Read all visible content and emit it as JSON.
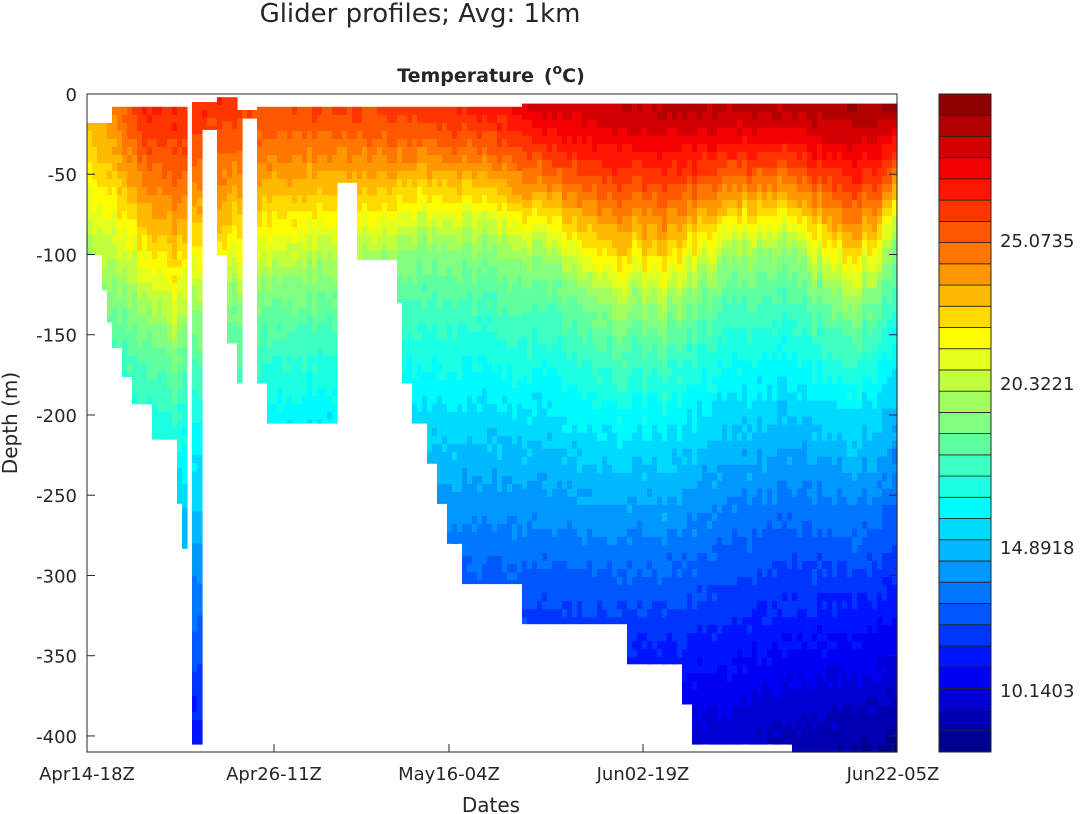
{
  "chart_data": {
    "type": "heatmap",
    "suptitle": "Glider profiles; Avg: 1km",
    "title": "Temperature",
    "title_units": "(oC)",
    "title_units_base": "(",
    "title_units_sup": "o",
    "title_units_rest": "C)",
    "xlabel": "Dates",
    "ylabel": "Depth  (m)",
    "xlim": [
      0,
      810
    ],
    "ylim": [
      -410,
      0
    ],
    "xticks": [
      {
        "value": 0,
        "label": "Apr14-18Z"
      },
      {
        "value": 187,
        "label": "Apr26-11Z"
      },
      {
        "value": 362,
        "label": "May16-04Z"
      },
      {
        "value": 556,
        "label": "Jun02-19Z"
      },
      {
        "value": 806,
        "label": "Jun22-05Z"
      }
    ],
    "yticks": [
      0,
      -50,
      -100,
      -150,
      -200,
      -250,
      -300,
      -350,
      -400
    ],
    "colorbar": {
      "colormap": "jet",
      "levels": 31,
      "clim": [
        8.08,
        29.92
      ],
      "ticks": [
        {
          "value": 25.0735,
          "label": "25.0735"
        },
        {
          "value": 20.3221,
          "label": "20.3221"
        },
        {
          "value": 14.8918,
          "label": "14.8918"
        },
        {
          "value": 10.1403,
          "label": "10.1403"
        }
      ]
    },
    "profile_max_depth_segments": [
      {
        "x0": 0,
        "x1": 13,
        "top": -18,
        "max_depth": -100
      },
      {
        "x0": 13,
        "x1": 18,
        "top": -18,
        "max_depth": -122
      },
      {
        "x0": 18,
        "x1": 26,
        "top": -18,
        "max_depth": -142
      },
      {
        "x0": 26,
        "x1": 35,
        "top": -8,
        "max_depth": -158
      },
      {
        "x0": 35,
        "x1": 44,
        "top": -8,
        "max_depth": -176
      },
      {
        "x0": 44,
        "x1": 66,
        "top": -8,
        "max_depth": -193
      },
      {
        "x0": 66,
        "x1": 91,
        "top": -8,
        "max_depth": -215
      },
      {
        "x0": 91,
        "x1": 94,
        "top": -8,
        "max_depth": -255
      },
      {
        "x0": 94,
        "x1": 101,
        "top": -8,
        "max_depth": -283
      },
      {
        "x0": 105,
        "x1": 115,
        "top": -5,
        "max_depth": -405
      },
      {
        "x0": 115,
        "x1": 132,
        "top": -5,
        "max_depth": -22
      },
      {
        "x0": 132,
        "x1": 138,
        "top": -2,
        "max_depth": -100
      },
      {
        "x0": 138,
        "x1": 150,
        "top": -2,
        "max_depth": -155
      },
      {
        "x0": 150,
        "x1": 153,
        "top": -10,
        "max_depth": -180
      },
      {
        "x0": 153,
        "x1": 171,
        "top": -10,
        "max_depth": -15
      },
      {
        "x0": 171,
        "x1": 178,
        "top": -8,
        "max_depth": -180
      },
      {
        "x0": 178,
        "x1": 250,
        "top": -8,
        "max_depth": -205
      },
      {
        "x0": 250,
        "x1": 270,
        "top": -8,
        "max_depth": -55
      },
      {
        "x0": 270,
        "x1": 308,
        "top": -8,
        "max_depth": -103
      },
      {
        "x0": 308,
        "x1": 317,
        "top": -8,
        "max_depth": -130
      },
      {
        "x0": 317,
        "x1": 323,
        "top": -8,
        "max_depth": -180
      },
      {
        "x0": 323,
        "x1": 339,
        "top": -8,
        "max_depth": -205
      },
      {
        "x0": 339,
        "x1": 350,
        "top": -8,
        "max_depth": -230
      },
      {
        "x0": 350,
        "x1": 360,
        "top": -8,
        "max_depth": -255
      },
      {
        "x0": 360,
        "x1": 375,
        "top": -8,
        "max_depth": -280
      },
      {
        "x0": 375,
        "x1": 437,
        "top": -8,
        "max_depth": -305
      },
      {
        "x0": 437,
        "x1": 538,
        "top": -6,
        "max_depth": -330
      },
      {
        "x0": 538,
        "x1": 593,
        "top": -6,
        "max_depth": -355
      },
      {
        "x0": 593,
        "x1": 597,
        "top": -6,
        "max_depth": -300
      },
      {
        "x0": 597,
        "x1": 606,
        "top": -6,
        "max_depth": -380
      },
      {
        "x0": 606,
        "x1": 703,
        "top": -6,
        "max_depth": -405
      },
      {
        "x0": 703,
        "x1": 810,
        "top": -6,
        "max_depth": -410
      }
    ],
    "surface_temp": [
      {
        "x": 0,
        "t": 23.5
      },
      {
        "x": 25,
        "t": 24.5
      },
      {
        "x": 60,
        "t": 26.8
      },
      {
        "x": 110,
        "t": 26.6
      },
      {
        "x": 180,
        "t": 25.8
      },
      {
        "x": 300,
        "t": 26.2
      },
      {
        "x": 420,
        "t": 27.3
      },
      {
        "x": 450,
        "t": 28.3
      },
      {
        "x": 560,
        "t": 28.8
      },
      {
        "x": 700,
        "t": 29.2
      },
      {
        "x": 810,
        "t": 29.5
      }
    ],
    "isotherm_20C_depth": [
      {
        "x": 0,
        "d": 95
      },
      {
        "x": 40,
        "d": 115
      },
      {
        "x": 85,
        "d": 150
      },
      {
        "x": 110,
        "d": 130
      },
      {
        "x": 180,
        "d": 110
      },
      {
        "x": 260,
        "d": 100
      },
      {
        "x": 360,
        "d": 85
      },
      {
        "x": 450,
        "d": 95
      },
      {
        "x": 530,
        "d": 125
      },
      {
        "x": 580,
        "d": 130
      },
      {
        "x": 640,
        "d": 100
      },
      {
        "x": 700,
        "d": 90
      },
      {
        "x": 760,
        "d": 125
      },
      {
        "x": 790,
        "d": 115
      },
      {
        "x": 810,
        "d": 85
      }
    ],
    "bottom_temp_410m": [
      {
        "x": 0,
        "t": 12.5
      },
      {
        "x": 110,
        "t": 11.0
      },
      {
        "x": 300,
        "t": 10.5
      },
      {
        "x": 500,
        "t": 10.0
      },
      {
        "x": 650,
        "t": 9.5
      },
      {
        "x": 750,
        "t": 8.8
      },
      {
        "x": 810,
        "t": 8.6
      }
    ]
  }
}
